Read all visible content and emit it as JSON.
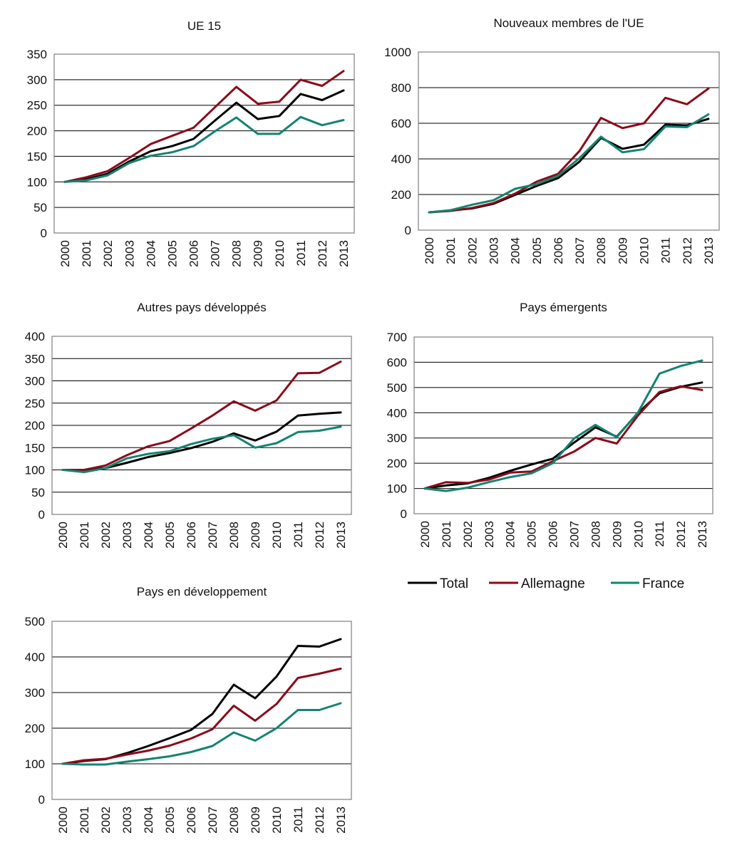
{
  "colors": {
    "Total": "#000000",
    "Allemagne": "#8b0a1a",
    "France": "#138471"
  },
  "legend": {
    "items": [
      {
        "label": "Total",
        "series": "Total"
      },
      {
        "label": "Allemagne",
        "series": "Allemagne"
      },
      {
        "label": "France",
        "series": "France"
      }
    ]
  },
  "chart_data": [
    {
      "type": "line",
      "title": "UE 15",
      "categories": [
        "2000",
        "2001",
        "2002",
        "2003",
        "2004",
        "2005",
        "2006",
        "2007",
        "2008",
        "2009",
        "2010",
        "2011",
        "2012",
        "2013"
      ],
      "ylim": [
        0,
        350
      ],
      "yticks": [
        0,
        50,
        100,
        150,
        200,
        250,
        300,
        350
      ],
      "grid": true,
      "xlabel": "",
      "ylabel": "",
      "series": [
        {
          "name": "Total",
          "values": [
            100,
            105,
            116,
            140,
            160,
            170,
            184,
            220,
            255,
            223,
            229,
            272,
            260,
            279
          ]
        },
        {
          "name": "Allemagne",
          "values": [
            100,
            109,
            121,
            147,
            174,
            190,
            206,
            246,
            286,
            253,
            257,
            300,
            288,
            317
          ]
        },
        {
          "name": "France",
          "values": [
            100,
            103,
            113,
            137,
            151,
            158,
            170,
            199,
            226,
            194,
            194,
            227,
            211,
            221
          ]
        }
      ]
    },
    {
      "type": "line",
      "title": "Nouveaux membres de l'UE",
      "categories": [
        "2000",
        "2001",
        "2002",
        "2003",
        "2004",
        "2005",
        "2006",
        "2007",
        "2008",
        "2009",
        "2010",
        "2011",
        "2012",
        "2013"
      ],
      "ylim": [
        0,
        1000
      ],
      "yticks": [
        0,
        200,
        400,
        600,
        800,
        1000
      ],
      "grid": true,
      "xlabel": "",
      "ylabel": "",
      "series": [
        {
          "name": "Total",
          "values": [
            100,
            110,
            122,
            148,
            198,
            248,
            292,
            385,
            518,
            457,
            480,
            592,
            588,
            625
          ]
        },
        {
          "name": "Allemagne",
          "values": [
            100,
            108,
            125,
            152,
            205,
            272,
            316,
            445,
            630,
            573,
            600,
            743,
            707,
            795
          ]
        },
        {
          "name": "France",
          "values": [
            100,
            112,
            143,
            168,
            232,
            258,
            305,
            405,
            525,
            437,
            455,
            582,
            578,
            650
          ]
        }
      ]
    },
    {
      "type": "line",
      "title": "Autres pays développés",
      "categories": [
        "2000",
        "2001",
        "2002",
        "2003",
        "2004",
        "2005",
        "2006",
        "2007",
        "2008",
        "2009",
        "2010",
        "2011",
        "2012",
        "2013"
      ],
      "ylim": [
        0,
        400
      ],
      "yticks": [
        0,
        50,
        100,
        150,
        200,
        250,
        300,
        350,
        400
      ],
      "grid": true,
      "xlabel": "",
      "ylabel": "",
      "series": [
        {
          "name": "Total",
          "values": [
            100,
            100,
            104,
            116,
            129,
            138,
            149,
            163,
            182,
            166,
            186,
            222,
            226,
            229
          ]
        },
        {
          "name": "Allemagne",
          "values": [
            100,
            100,
            110,
            133,
            153,
            165,
            193,
            222,
            254,
            233,
            256,
            317,
            318,
            343
          ]
        },
        {
          "name": "France",
          "values": [
            100,
            95,
            104,
            126,
            136,
            142,
            158,
            170,
            178,
            150,
            160,
            185,
            188,
            197
          ]
        }
      ]
    },
    {
      "type": "line",
      "title": "Pays émergents",
      "categories": [
        "2000",
        "2001",
        "2002",
        "2003",
        "2004",
        "2005",
        "2006",
        "2007",
        "2008",
        "2009",
        "2010",
        "2011",
        "2012",
        "2013"
      ],
      "ylim": [
        0,
        700
      ],
      "yticks": [
        0,
        100,
        200,
        300,
        400,
        500,
        600,
        700
      ],
      "grid": true,
      "xlabel": "",
      "ylabel": "",
      "series": [
        {
          "name": "Total",
          "values": [
            100,
            112,
            120,
            142,
            170,
            195,
            218,
            282,
            342,
            305,
            400,
            477,
            503,
            520
          ]
        },
        {
          "name": "Allemagne",
          "values": [
            100,
            125,
            122,
            135,
            163,
            167,
            208,
            246,
            300,
            278,
            390,
            482,
            505,
            490
          ]
        },
        {
          "name": "France",
          "values": [
            100,
            90,
            103,
            125,
            145,
            160,
            200,
            298,
            352,
            303,
            402,
            555,
            585,
            607
          ]
        }
      ]
    },
    {
      "type": "line",
      "title": "Pays en développement",
      "categories": [
        "2000",
        "2001",
        "2002",
        "2003",
        "2004",
        "2005",
        "2006",
        "2007",
        "2008",
        "2009",
        "2010",
        "2011",
        "2012",
        "2013"
      ],
      "ylim": [
        0,
        500
      ],
      "yticks": [
        0,
        100,
        200,
        300,
        400,
        500
      ],
      "grid": true,
      "xlabel": "",
      "ylabel": "",
      "series": [
        {
          "name": "Total",
          "values": [
            100,
            108,
            113,
            130,
            150,
            172,
            195,
            240,
            322,
            284,
            345,
            431,
            429,
            450
          ]
        },
        {
          "name": "Allemagne",
          "values": [
            100,
            110,
            114,
            126,
            137,
            151,
            171,
            197,
            263,
            221,
            268,
            341,
            353,
            367
          ]
        },
        {
          "name": "France",
          "values": [
            100,
            98,
            98,
            106,
            113,
            121,
            133,
            150,
            188,
            165,
            200,
            251,
            251,
            270
          ]
        }
      ],
      "legend_position": "none"
    }
  ]
}
